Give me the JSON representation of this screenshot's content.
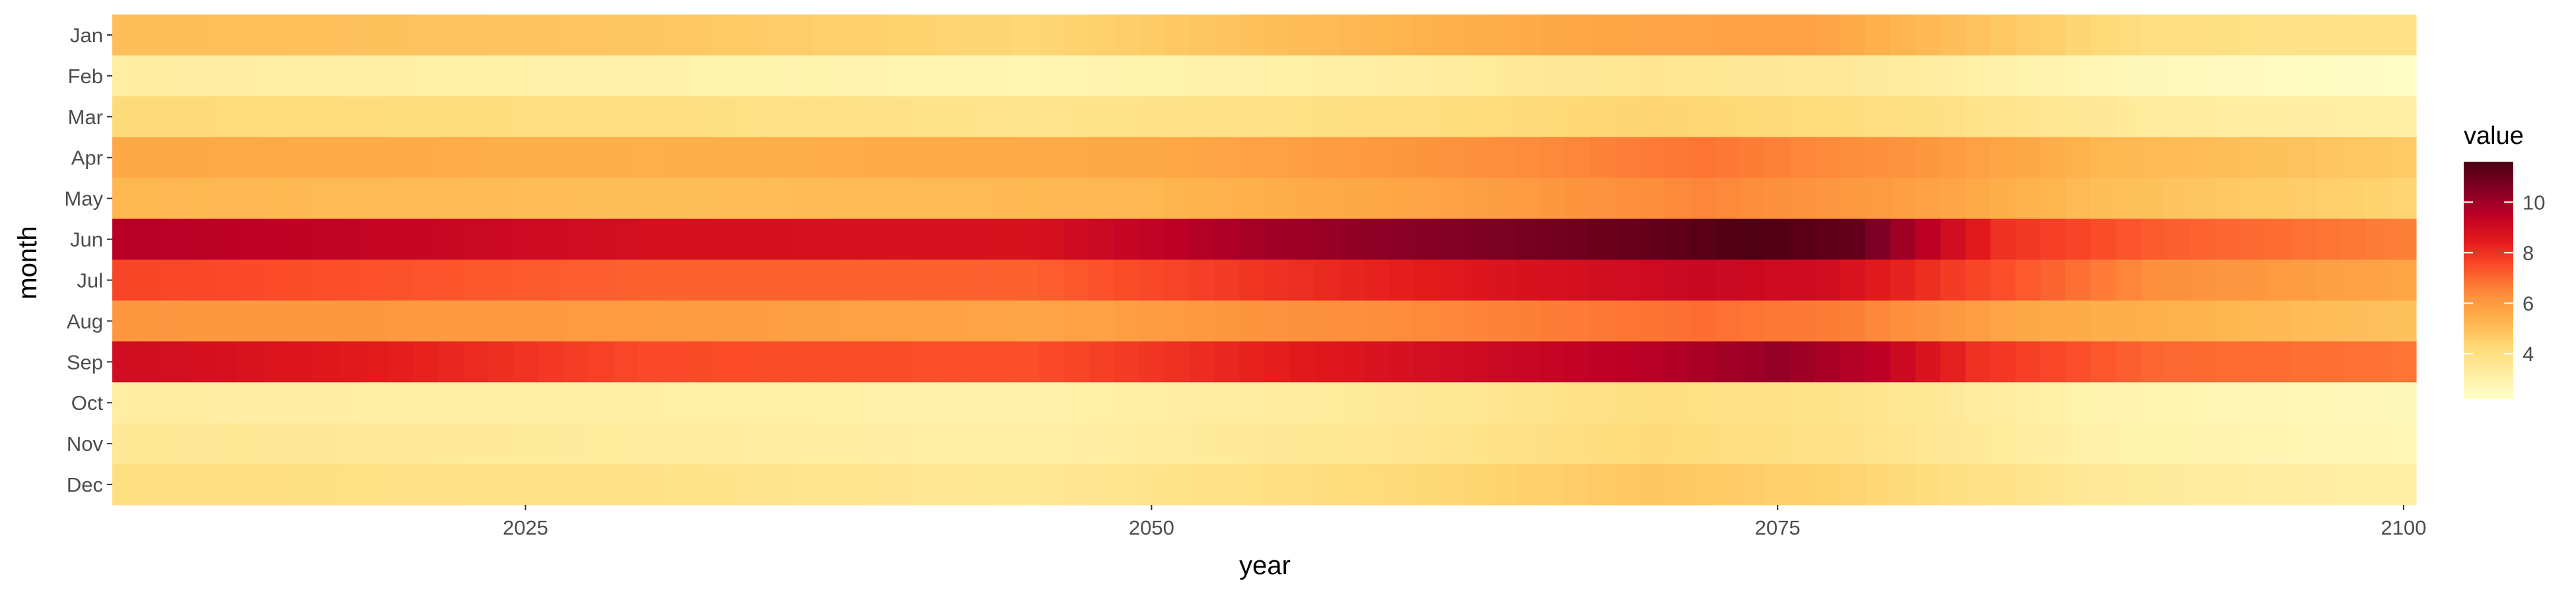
{
  "chart_data": {
    "type": "heatmap",
    "title": "",
    "xlabel": "year",
    "ylabel": "month",
    "x_range": [
      2010,
      2100
    ],
    "x_ticks": [
      2025,
      2050,
      2075,
      2100
    ],
    "y_categories": [
      "Jan",
      "Feb",
      "Mar",
      "Apr",
      "May",
      "Jun",
      "Jul",
      "Aug",
      "Sep",
      "Oct",
      "Nov",
      "Dec"
    ],
    "color_scale": {
      "name": "YlOrRd",
      "min": 2.2,
      "max": 11.6,
      "colors": [
        "#ffffcc",
        "#ffeda0",
        "#fed976",
        "#feb24c",
        "#fd8d3c",
        "#fc4e2a",
        "#e31a1c",
        "#bd0026",
        "#800026",
        "#4a0010"
      ]
    },
    "legend": {
      "title": "value",
      "ticks": [
        4,
        6,
        8,
        10
      ],
      "position": "right"
    },
    "row_profiles": {
      "note_keys": "year keyframes with interpolated values per month",
      "Jan": [
        [
          2010,
          5.0
        ],
        [
          2030,
          4.8
        ],
        [
          2045,
          4.3
        ],
        [
          2055,
          5.0
        ],
        [
          2068,
          5.7
        ],
        [
          2076,
          5.8
        ],
        [
          2082,
          5.0
        ],
        [
          2090,
          4.0
        ],
        [
          2100,
          3.8
        ]
      ],
      "Feb": [
        [
          2010,
          3.2
        ],
        [
          2030,
          3.0
        ],
        [
          2045,
          2.8
        ],
        [
          2060,
          3.2
        ],
        [
          2070,
          3.6
        ],
        [
          2080,
          3.3
        ],
        [
          2090,
          2.6
        ],
        [
          2100,
          2.3
        ]
      ],
      "Mar": [
        [
          2010,
          4.2
        ],
        [
          2030,
          4.0
        ],
        [
          2045,
          3.7
        ],
        [
          2060,
          4.0
        ],
        [
          2070,
          4.4
        ],
        [
          2080,
          4.0
        ],
        [
          2090,
          3.3
        ],
        [
          2100,
          3.1
        ]
      ],
      "Apr": [
        [
          2010,
          5.6
        ],
        [
          2030,
          5.4
        ],
        [
          2050,
          5.6
        ],
        [
          2062,
          6.2
        ],
        [
          2072,
          6.8
        ],
        [
          2080,
          6.2
        ],
        [
          2088,
          5.2
        ],
        [
          2100,
          4.7
        ]
      ],
      "May": [
        [
          2010,
          5.2
        ],
        [
          2030,
          5.0
        ],
        [
          2050,
          5.2
        ],
        [
          2062,
          5.8
        ],
        [
          2072,
          6.5
        ],
        [
          2080,
          5.9
        ],
        [
          2088,
          5.0
        ],
        [
          2100,
          4.4
        ]
      ],
      "Jun": [
        [
          2010,
          9.6
        ],
        [
          2020,
          9.3
        ],
        [
          2030,
          8.9
        ],
        [
          2045,
          8.8
        ],
        [
          2055,
          10.0
        ],
        [
          2063,
          10.6
        ],
        [
          2070,
          11.1
        ],
        [
          2074,
          11.5
        ],
        [
          2078,
          11.1
        ],
        [
          2081,
          9.5
        ],
        [
          2084,
          8.0
        ],
        [
          2090,
          7.2
        ],
        [
          2100,
          6.6
        ]
      ],
      "Jul": [
        [
          2010,
          7.6
        ],
        [
          2030,
          7.1
        ],
        [
          2045,
          7.1
        ],
        [
          2055,
          8.0
        ],
        [
          2065,
          8.8
        ],
        [
          2072,
          9.2
        ],
        [
          2077,
          9.0
        ],
        [
          2082,
          7.8
        ],
        [
          2090,
          6.3
        ],
        [
          2100,
          5.7
        ]
      ],
      "Aug": [
        [
          2010,
          6.1
        ],
        [
          2030,
          6.0
        ],
        [
          2045,
          5.7
        ],
        [
          2055,
          6.2
        ],
        [
          2065,
          6.6
        ],
        [
          2072,
          6.9
        ],
        [
          2078,
          6.6
        ],
        [
          2085,
          5.6
        ],
        [
          2100,
          4.9
        ]
      ],
      "Sep": [
        [
          2010,
          9.0
        ],
        [
          2020,
          8.4
        ],
        [
          2030,
          7.5
        ],
        [
          2045,
          7.4
        ],
        [
          2055,
          8.4
        ],
        [
          2063,
          9.1
        ],
        [
          2070,
          9.6
        ],
        [
          2075,
          10.2
        ],
        [
          2079,
          9.5
        ],
        [
          2083,
          8.0
        ],
        [
          2090,
          7.0
        ],
        [
          2100,
          6.8
        ]
      ],
      "Oct": [
        [
          2010,
          3.2
        ],
        [
          2030,
          3.1
        ],
        [
          2045,
          3.0
        ],
        [
          2060,
          3.4
        ],
        [
          2070,
          4.0
        ],
        [
          2078,
          3.7
        ],
        [
          2088,
          2.9
        ],
        [
          2100,
          2.6
        ]
      ],
      "Nov": [
        [
          2010,
          3.5
        ],
        [
          2030,
          3.3
        ],
        [
          2045,
          3.1
        ],
        [
          2060,
          3.6
        ],
        [
          2070,
          4.2
        ],
        [
          2078,
          3.8
        ],
        [
          2088,
          3.0
        ],
        [
          2100,
          2.7
        ]
      ],
      "Dec": [
        [
          2010,
          4.0
        ],
        [
          2030,
          3.8
        ],
        [
          2045,
          3.5
        ],
        [
          2060,
          4.2
        ],
        [
          2070,
          4.8
        ],
        [
          2078,
          4.4
        ],
        [
          2088,
          3.4
        ],
        [
          2100,
          3.1
        ]
      ]
    }
  }
}
